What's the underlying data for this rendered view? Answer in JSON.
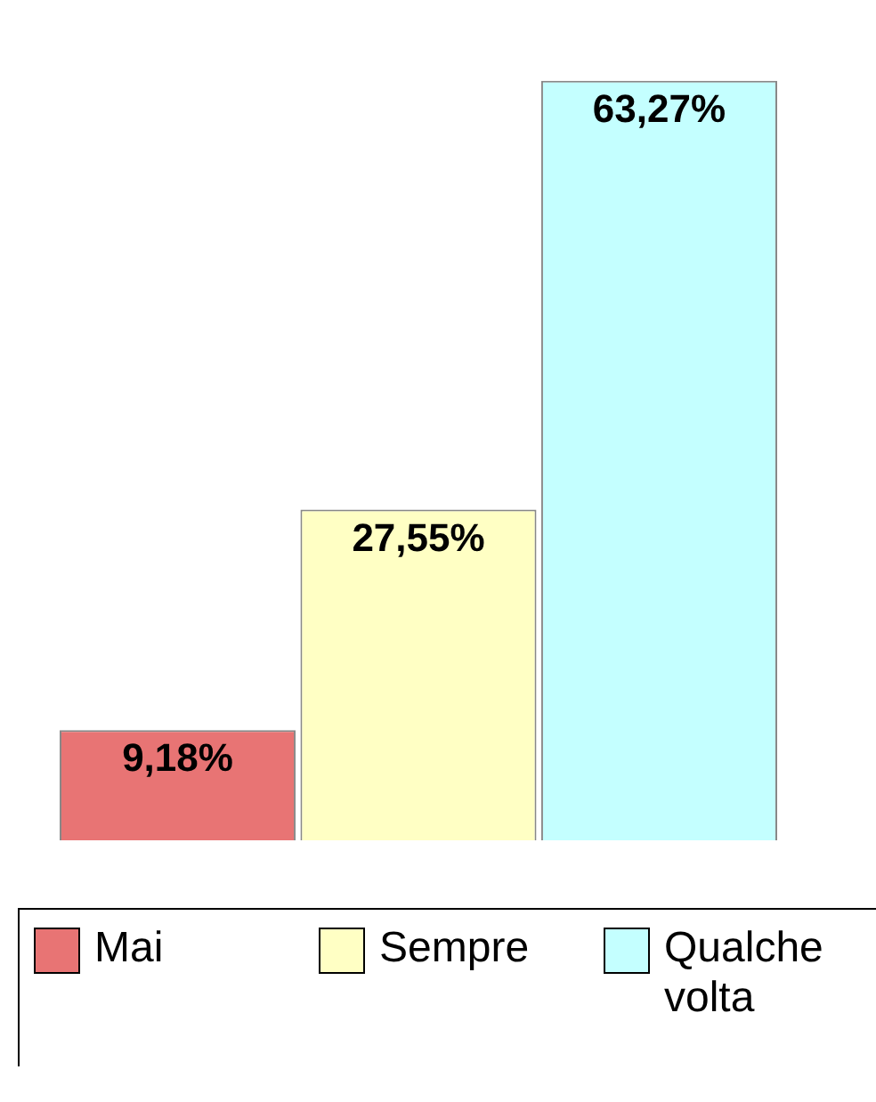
{
  "chart_data": {
    "type": "bar",
    "categories": [
      null
    ],
    "series": [
      {
        "name": "Mai",
        "color": "#e87474",
        "values": [
          9.18
        ],
        "value_labels": [
          "9,18%"
        ]
      },
      {
        "name": "Sempre",
        "color": "#ffffc4",
        "values": [
          27.55
        ],
        "value_labels": [
          "27,55%"
        ]
      },
      {
        "name": "Qualche volta",
        "color": "#c4ffff",
        "values": [
          63.27
        ],
        "value_labels": [
          "63,27%"
        ]
      }
    ],
    "legend": "bottom"
  }
}
